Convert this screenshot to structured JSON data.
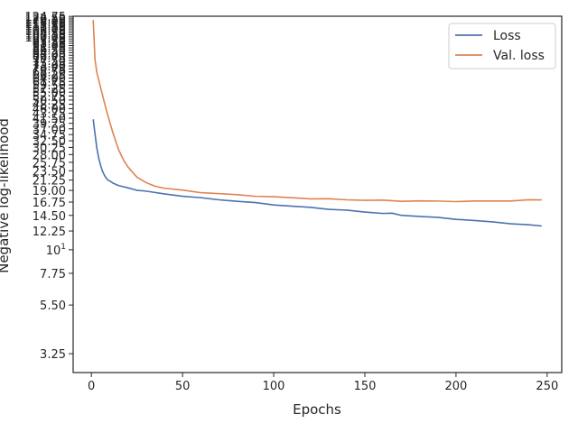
{
  "chart_data": {
    "type": "line",
    "xlabel": "Epochs",
    "ylabel": "Negative log-likelihood",
    "yscale": "log",
    "xlim": [
      -10,
      258
    ],
    "ylim": [
      2.65,
      125
    ],
    "grid": false,
    "legend_position": "top-right",
    "x_ticks": [
      "0",
      "50",
      "100",
      "150",
      "200",
      "250"
    ],
    "x_tick_values": [
      0,
      50,
      100,
      150,
      200,
      250
    ],
    "y_ticks": [
      {
        "value": 3.25,
        "label": "3.25"
      },
      {
        "value": 5.5,
        "label": "5.50"
      },
      {
        "value": 7.75,
        "label": "7.75"
      },
      {
        "value": 10,
        "label": "10",
        "sup": "1"
      },
      {
        "value": 12.25,
        "label": "12.25"
      },
      {
        "value": 14.5,
        "label": "14.50"
      },
      {
        "value": 16.75,
        "label": "16.75"
      },
      {
        "value": 19.0,
        "label": "19.00"
      },
      {
        "value": 21.25,
        "label": "21.25"
      },
      {
        "value": 23.5,
        "label": "23.50"
      },
      {
        "value": 25.75,
        "label": "25.75"
      },
      {
        "value": 28.0,
        "label": "28.00"
      },
      {
        "value": 30.25,
        "label": "30.25"
      },
      {
        "value": 32.5,
        "label": "32.50"
      },
      {
        "value": 34.75,
        "label": "34.75"
      },
      {
        "value": 37.0,
        "label": "37.00"
      },
      {
        "value": 39.25,
        "label": "39.25"
      },
      {
        "value": 41.5,
        "label": "41.50"
      },
      {
        "value": 43.75,
        "label": "43.75"
      },
      {
        "value": 46.0,
        "label": "46.00"
      },
      {
        "value": 48.25,
        "label": "48.25"
      },
      {
        "value": 50.5,
        "label": "50.50"
      },
      {
        "value": 52.75,
        "label": "52.75"
      },
      {
        "value": 55.0,
        "label": "55.00"
      },
      {
        "value": 57.25,
        "label": "57.25"
      },
      {
        "value": 59.5,
        "label": "59.50"
      },
      {
        "value": 61.75,
        "label": "61.75"
      },
      {
        "value": 64.0,
        "label": "64.00"
      },
      {
        "value": 66.25,
        "label": "66.25"
      },
      {
        "value": 68.5,
        "label": "68.50"
      },
      {
        "value": 70.75,
        "label": "70.75"
      },
      {
        "value": 73.0,
        "label": "73.00"
      },
      {
        "value": 75.25,
        "label": "75.25"
      },
      {
        "value": 77.5,
        "label": "77.50"
      },
      {
        "value": 79.75,
        "label": "79.75"
      },
      {
        "value": 82.0,
        "label": "82.00"
      },
      {
        "value": 84.25,
        "label": "84.25"
      },
      {
        "value": 86.5,
        "label": "86.50"
      },
      {
        "value": 88.75,
        "label": "88.75"
      },
      {
        "value": 91.0,
        "label": "91.00"
      },
      {
        "value": 93.25,
        "label": "93.25"
      },
      {
        "value": 95.5,
        "label": "95.50"
      },
      {
        "value": 97.75,
        "label": "97.75"
      },
      {
        "value": 100.0,
        "label": "100.00"
      },
      {
        "value": 102.25,
        "label": "102.25"
      },
      {
        "value": 104.5,
        "label": "104.50"
      },
      {
        "value": 106.75,
        "label": "106.75"
      },
      {
        "value": 109.0,
        "label": "109.00"
      },
      {
        "value": 111.25,
        "label": "111.25"
      },
      {
        "value": 113.5,
        "label": "113.50"
      },
      {
        "value": 115.75,
        "label": "115.75"
      },
      {
        "value": 118.0,
        "label": "118.00"
      },
      {
        "value": 120.25,
        "label": "120.25"
      },
      {
        "value": 122.5,
        "label": "122.50"
      },
      {
        "value": 124.75,
        "label": "124.75"
      }
    ],
    "series": [
      {
        "name": "Loss",
        "color": "#4c72b0",
        "x": [
          1,
          2,
          3,
          4,
          5,
          6,
          7,
          8,
          9,
          10,
          12,
          15,
          20,
          25,
          30,
          40,
          50,
          60,
          70,
          80,
          90,
          100,
          110,
          120,
          130,
          140,
          150,
          160,
          165,
          170,
          180,
          190,
          200,
          210,
          220,
          230,
          240,
          247
        ],
        "y": [
          41,
          35,
          30,
          27,
          25,
          23.5,
          22.5,
          21.8,
          21.3,
          21.0,
          20.6,
          20.0,
          19.5,
          19.1,
          18.8,
          18.3,
          17.9,
          17.5,
          17.2,
          16.9,
          16.6,
          16.3,
          16.0,
          15.8,
          15.55,
          15.3,
          15.05,
          14.85,
          14.8,
          14.55,
          14.35,
          14.15,
          13.95,
          13.7,
          13.5,
          13.3,
          13.05,
          12.95
        ]
      },
      {
        "name": "Val. loss",
        "color": "#dd8452",
        "x": [
          1,
          2,
          3,
          5,
          8,
          10,
          12,
          15,
          18,
          20,
          25,
          30,
          35,
          40,
          50,
          60,
          70,
          80,
          90,
          100,
          110,
          120,
          130,
          140,
          150,
          160,
          170,
          180,
          190,
          200,
          210,
          220,
          230,
          240,
          247
        ],
        "y": [
          120,
          78,
          68,
          58,
          46,
          40,
          35,
          29.5,
          26,
          24.5,
          22,
          20.6,
          19.9,
          19.5,
          19.0,
          18.6,
          18.35,
          18.1,
          17.9,
          17.7,
          17.55,
          17.4,
          17.3,
          17.2,
          17.1,
          17.05,
          16.95,
          16.95,
          16.9,
          16.9,
          16.9,
          16.95,
          17.0,
          17.1,
          17.2
        ]
      }
    ]
  }
}
